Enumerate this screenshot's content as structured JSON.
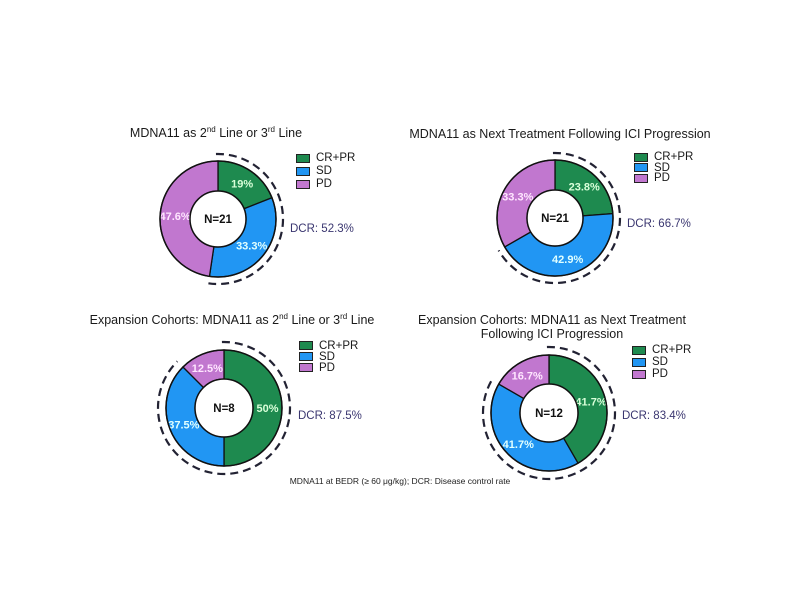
{
  "colors": {
    "cr_pr": "#1e8a4f",
    "sd": "#2196f3",
    "pd": "#c177cf",
    "dashed": "#222233",
    "dcr_text": "#3a3670",
    "label_cr_pr": "#d9ffd9",
    "label_sd": "#e0ffff",
    "label_pd": "#ffe6ff"
  },
  "legend_labels": [
    "CR+PR",
    "SD",
    "PD"
  ],
  "footnote": "MDNA11 at BEDR (≥ 60 μg/kg); DCR: Disease control rate",
  "panels": [
    {
      "title_pre": "MDNA11 as 2",
      "title_sup1": "nd",
      "title_mid": " Line or 3",
      "title_sup2": "rd",
      "title_post": " Line",
      "n_label": "N=21",
      "dcr_label": "DCR: 52.3%",
      "segments": [
        {
          "name": "CR+PR",
          "value": 19,
          "label": "19%"
        },
        {
          "name": "SD",
          "value": 33.3,
          "label": "33.3%"
        },
        {
          "name": "PD",
          "value": 47.6,
          "label": "47.6%"
        }
      ]
    },
    {
      "title": "MDNA11 as Next Treatment Following ICI Progression",
      "n_label": "N=21",
      "dcr_label": "DCR: 66.7%",
      "segments": [
        {
          "name": "CR+PR",
          "value": 23.8,
          "label": "23.8%"
        },
        {
          "name": "SD",
          "value": 42.9,
          "label": "42.9%"
        },
        {
          "name": "PD",
          "value": 33.3,
          "label": "33.3%"
        }
      ]
    },
    {
      "title_pre": "Expansion Cohorts: MDNA11 as 2",
      "title_sup1": "nd",
      "title_mid": " Line or 3",
      "title_sup2": "rd",
      "title_post": " Line",
      "n_label": "N=8",
      "dcr_label": "DCR: 87.5%",
      "segments": [
        {
          "name": "CR+PR",
          "value": 50,
          "label": "50%"
        },
        {
          "name": "SD",
          "value": 37.5,
          "label": "37.5%"
        },
        {
          "name": "PD",
          "value": 12.5,
          "label": "12.5%"
        }
      ]
    },
    {
      "title_line1": "Expansion Cohorts: MDNA11 as Next Treatment",
      "title_line2": "Following ICI Progression",
      "n_label": "N=12",
      "dcr_label": "DCR: 83.4%",
      "segments": [
        {
          "name": "CR+PR",
          "value": 41.7,
          "label": "41.7%"
        },
        {
          "name": "SD",
          "value": 41.7,
          "label": "41.7%"
        },
        {
          "name": "PD",
          "value": 16.7,
          "label": "16.7%"
        }
      ]
    }
  ],
  "chart_data": [
    {
      "type": "pie",
      "title": "MDNA11 as 2nd Line or 3rd Line",
      "categories": [
        "CR+PR",
        "SD",
        "PD"
      ],
      "values": [
        19,
        33.3,
        47.6
      ],
      "center_label": "N=21",
      "annotation": "DCR: 52.3%",
      "legend_position": "upper right"
    },
    {
      "type": "pie",
      "title": "MDNA11 as Next Treatment Following ICI Progression",
      "categories": [
        "CR+PR",
        "SD",
        "PD"
      ],
      "values": [
        23.8,
        42.9,
        33.3
      ],
      "center_label": "N=21",
      "annotation": "DCR: 66.7%",
      "legend_position": "upper right"
    },
    {
      "type": "pie",
      "title": "Expansion Cohorts: MDNA11 as 2nd Line or 3rd Line",
      "categories": [
        "CR+PR",
        "SD",
        "PD"
      ],
      "values": [
        50,
        37.5,
        12.5
      ],
      "center_label": "N=8",
      "annotation": "DCR: 87.5%",
      "legend_position": "upper right"
    },
    {
      "type": "pie",
      "title": "Expansion Cohorts: MDNA11 as Next Treatment Following ICI Progression",
      "categories": [
        "CR+PR",
        "SD",
        "PD"
      ],
      "values": [
        41.7,
        41.7,
        16.7
      ],
      "center_label": "N=12",
      "annotation": "DCR: 83.4%",
      "legend_position": "upper right"
    }
  ]
}
